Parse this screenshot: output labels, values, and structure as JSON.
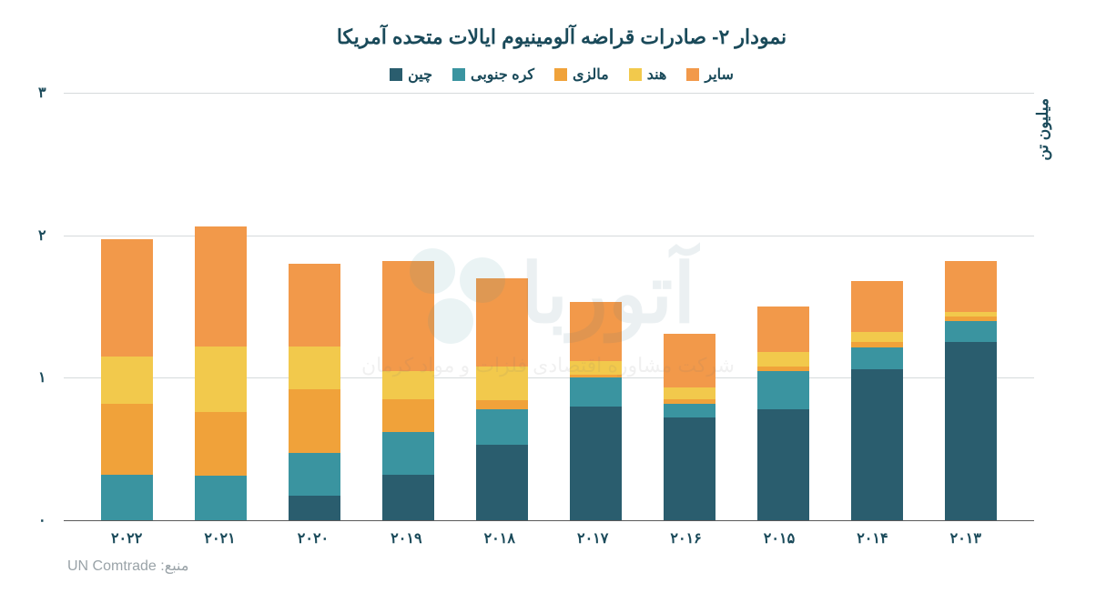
{
  "chart": {
    "type": "stacked-bar",
    "title": "نمودار ۲- صادرات قراضه آلومینیوم ایالات متحده آمریکا",
    "title_fontsize": 22,
    "ylabel": "میلیون تن",
    "ylabel_fontsize": 17,
    "ylim": [
      0,
      3
    ],
    "ytick_step": 1,
    "yticks": [
      "۰",
      "۱",
      "۲",
      "۳"
    ],
    "grid_color": "#d6dadc",
    "axis_color": "#5a5a5a",
    "background_color": "#ffffff",
    "bar_width_ratio": 0.55,
    "label_fontsize": 16,
    "tick_fontsize": 16,
    "categories": [
      "۲۰۱۳",
      "۲۰۱۴",
      "۲۰۱۵",
      "۲۰۱۶",
      "۲۰۱۷",
      "۲۰۱۸",
      "۲۰۱۹",
      "۲۰۲۰",
      "۲۰۲۱",
      "۲۰۲۲"
    ],
    "series": [
      {
        "name": "چین",
        "color": "#2a5d6e"
      },
      {
        "name": "کره جنوبی",
        "color": "#3a94a0"
      },
      {
        "name": "مالزی",
        "color": "#f0a23a"
      },
      {
        "name": "هند",
        "color": "#f2c94c"
      },
      {
        "name": "سایر",
        "color": "#f2994a"
      }
    ],
    "data": {
      "چین": [
        1.25,
        1.06,
        0.78,
        0.72,
        0.8,
        0.53,
        0.32,
        0.17,
        0.0,
        0.0
      ],
      "کره جنوبی": [
        0.15,
        0.15,
        0.27,
        0.1,
        0.2,
        0.25,
        0.3,
        0.3,
        0.31,
        0.32
      ],
      "مالزی": [
        0.03,
        0.04,
        0.03,
        0.03,
        0.02,
        0.06,
        0.23,
        0.45,
        0.45,
        0.5
      ],
      "هند": [
        0.03,
        0.07,
        0.1,
        0.08,
        0.1,
        0.24,
        0.2,
        0.3,
        0.46,
        0.33
      ],
      "سایر": [
        0.36,
        0.36,
        0.32,
        0.38,
        0.41,
        0.62,
        0.77,
        0.58,
        0.84,
        0.82
      ]
    },
    "source_label": "منبع:",
    "source_value": "UN Comtrade",
    "source_fontsize": 16
  },
  "watermark": {
    "text_main": "آتوربا",
    "text_sub": "شرکت مشاوره اقتصادی فلزات و مواد کرمان"
  }
}
